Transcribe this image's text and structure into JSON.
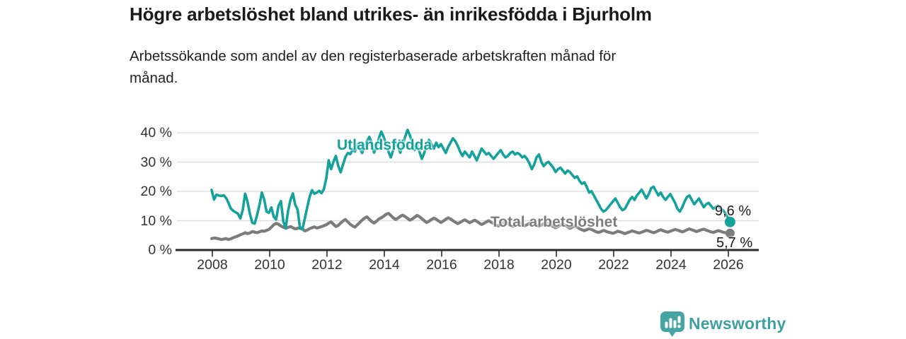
{
  "header": {
    "title": "Högre arbetslöshet bland utrikes- än inrikesfödda i Bjurholm",
    "subtitle": "Arbetssökande som andel av den registerbaserade arbetskraften månad för månad."
  },
  "colors": {
    "teal_series": "#15A29B",
    "gray_series": "#7C7C7C",
    "gridline": "#DADADA",
    "axis_line": "#2B2B2B",
    "axis_text": "#333333",
    "brand_teal": "#3FA0A1"
  },
  "chart_data": {
    "type": "line",
    "title": "Högre arbetslöshet bland utrikes- än inrikesfödda i Bjurholm",
    "subtitle": "Arbetssökande som andel av den registerbaserade arbetskraften månad för månad.",
    "xlabel": "",
    "ylabel": "",
    "unit": "%",
    "grid": true,
    "legend_position": "inline-labels",
    "x_start_year": 2008,
    "x_interval": "monthly",
    "x_end": "2026-02",
    "xlim": [
      2008,
      2026.17
    ],
    "ylim": [
      0,
      42
    ],
    "x_tick_labels": [
      "2008",
      "2010",
      "2012",
      "2014",
      "2016",
      "2018",
      "2020",
      "2022",
      "2024",
      "2026"
    ],
    "y_tick_labels": [
      "40 %",
      "30 %",
      "20 %",
      "10 %",
      "0 %"
    ],
    "y_tick_values": [
      40,
      30,
      20,
      10,
      0
    ],
    "series": [
      {
        "name": "Utlandsfödda",
        "color": "#15A29B",
        "end_label": "9,6 %",
        "end_value": 9.6,
        "values": [
          20.5,
          17.2,
          18.9,
          18.6,
          18.4,
          18.7,
          17.8,
          16.2,
          14.2,
          13.4,
          12.9,
          12.4,
          10.8,
          13.6,
          19.2,
          16.6,
          12.4,
          9.3,
          9.0,
          11.8,
          15.3,
          19.6,
          17.2,
          13.1,
          12.7,
          14.5,
          11.3,
          10.4,
          15.1,
          16.7,
          9.7,
          7.5,
          13.3,
          17.1,
          19.3,
          15.5,
          13.7,
          7.3,
          7.1,
          10.7,
          14.5,
          18.1,
          20.4,
          19.2,
          19.6,
          20.2,
          19.4,
          20.8,
          24.5,
          30.6,
          27.6,
          30.1,
          32.1,
          28.7,
          26.5,
          29.1,
          31.7,
          33.1,
          32.7,
          34.2,
          33.6,
          36.1,
          34.6,
          33.1,
          35.6,
          37.1,
          38.6,
          36.6,
          33.2,
          35.1,
          38.1,
          40.4,
          38.6,
          36.1,
          33.6,
          31.6,
          34.1,
          36.6,
          35.1,
          33.2,
          36.1,
          38.6,
          41.0,
          39.1,
          36.6,
          34.1,
          36.1,
          33.6,
          31.1,
          33.1,
          35.6,
          37.6,
          36.1,
          34.6,
          36.6,
          35.1,
          36.1,
          34.6,
          33.1,
          35.1,
          36.6,
          38.1,
          37.1,
          35.6,
          33.6,
          32.1,
          33.6,
          32.6,
          31.6,
          33.6,
          32.1,
          30.6,
          32.6,
          34.6,
          33.6,
          32.6,
          33.1,
          32.1,
          31.1,
          32.1,
          33.1,
          34.1,
          32.6,
          31.6,
          32.1,
          33.1,
          33.6,
          32.6,
          33.1,
          32.6,
          31.6,
          32.1,
          31.1,
          29.6,
          27.6,
          29.1,
          31.6,
          32.6,
          30.1,
          28.6,
          29.6,
          30.1,
          29.1,
          28.1,
          26.6,
          27.6,
          28.1,
          27.1,
          26.1,
          27.1,
          26.6,
          25.6,
          24.6,
          25.1,
          23.6,
          22.6,
          23.1,
          21.6,
          19.6,
          20.1,
          18.6,
          17.1,
          15.6,
          14.1,
          13.1,
          13.6,
          14.6,
          15.6,
          16.6,
          17.6,
          16.1,
          14.6,
          13.6,
          14.1,
          15.6,
          17.1,
          18.1,
          17.1,
          18.6,
          19.6,
          20.6,
          19.1,
          17.6,
          19.1,
          21.1,
          21.6,
          20.1,
          18.6,
          19.6,
          18.1,
          17.1,
          18.1,
          19.1,
          17.6,
          16.1,
          14.1,
          13.1,
          14.6,
          16.6,
          18.1,
          18.6,
          17.1,
          15.6,
          16.6,
          17.6,
          16.1,
          14.6,
          15.6,
          16.1,
          15.1,
          14.1,
          14.6,
          15.1,
          14.1,
          13.6,
          12.6,
          11.2,
          9.6
        ]
      },
      {
        "name": "Total arbetslöshet",
        "color": "#7C7C7C",
        "end_label": "5,7 %",
        "end_value": 5.7,
        "values": [
          3.9,
          4.1,
          4.0,
          3.8,
          3.6,
          3.7,
          3.9,
          3.6,
          3.8,
          4.2,
          4.5,
          4.8,
          5.2,
          5.5,
          5.9,
          5.6,
          5.8,
          6.3,
          6.1,
          5.9,
          6.2,
          6.5,
          6.4,
          6.7,
          7.0,
          7.8,
          8.6,
          9.1,
          8.8,
          8.2,
          7.8,
          7.4,
          7.7,
          8.0,
          7.6,
          7.2,
          7.4,
          7.7,
          7.2,
          6.5,
          6.8,
          7.3,
          7.6,
          7.9,
          7.5,
          7.7,
          8.0,
          8.3,
          8.6,
          9.2,
          9.6,
          8.8,
          8.0,
          8.4,
          9.2,
          9.9,
          10.4,
          9.6,
          8.8,
          8.2,
          7.8,
          8.6,
          9.4,
          10.2,
          10.9,
          11.3,
          10.5,
          9.7,
          9.2,
          9.8,
          10.6,
          11.0,
          11.5,
          12.2,
          12.5,
          11.8,
          11.0,
          10.4,
          10.9,
          11.5,
          11.9,
          11.4,
          10.8,
          10.2,
          10.6,
          11.2,
          11.8,
          11.4,
          10.7,
          10.0,
          9.4,
          9.8,
          10.4,
          10.9,
          10.5,
          9.9,
          9.4,
          9.9,
          10.5,
          11.0,
          10.6,
          10.0,
          9.5,
          9.0,
          9.4,
          9.9,
          10.3,
          9.8,
          9.3,
          9.7,
          10.2,
          9.8,
          9.2,
          8.7,
          9.1,
          9.6,
          10.0,
          9.5,
          9.0,
          8.6,
          8.2,
          8.7,
          9.2,
          9.6,
          9.1,
          8.5,
          8.0,
          8.4,
          8.9,
          9.3,
          8.8,
          8.3,
          8.6,
          9.1,
          9.5,
          9.0,
          8.5,
          8.1,
          8.5,
          9.0,
          9.4,
          8.9,
          8.4,
          8.0,
          7.6,
          8.0,
          8.5,
          8.9,
          8.4,
          7.9,
          7.4,
          7.8,
          8.2,
          7.8,
          7.3,
          6.9,
          6.6,
          6.9,
          7.3,
          7.0,
          6.6,
          6.2,
          6.0,
          6.3,
          6.7,
          6.4,
          6.1,
          5.9,
          5.7,
          6.0,
          6.4,
          6.2,
          5.9,
          5.6,
          5.9,
          6.2,
          6.5,
          6.3,
          6.0,
          5.8,
          6.1,
          6.4,
          6.7,
          6.5,
          6.2,
          5.9,
          6.2,
          6.6,
          6.9,
          6.6,
          6.3,
          6.1,
          6.4,
          6.7,
          7.0,
          6.8,
          6.5,
          6.2,
          6.5,
          6.9,
          7.2,
          6.9,
          6.6,
          6.3,
          6.6,
          6.9,
          7.1,
          6.8,
          6.5,
          6.2,
          6.0,
          6.3,
          6.6,
          6.4,
          6.1,
          5.9,
          5.8,
          5.7
        ]
      }
    ]
  },
  "footer": {
    "brand": "Newsworthy",
    "brand_icon": "bar-chart-speech-bubble-icon"
  }
}
